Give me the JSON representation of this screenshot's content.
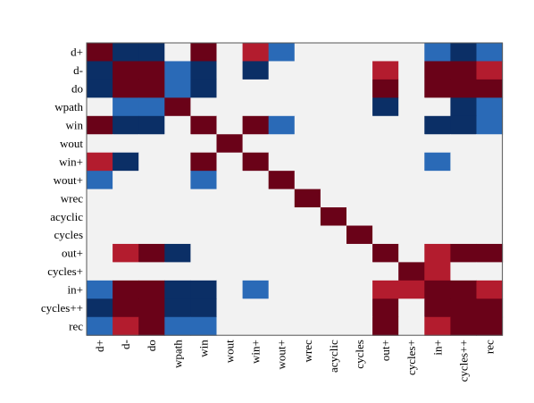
{
  "chart_data": {
    "type": "heatmap",
    "title": "",
    "xlabel": "",
    "ylabel": "",
    "row_labels": [
      "d+",
      "d-",
      "do",
      "wpath",
      "win",
      "wout",
      "win+",
      "wout+",
      "wrec",
      "acyclic",
      "cycles",
      "out+",
      "cycles+",
      "in+",
      "cycles++",
      "rec"
    ],
    "col_labels": [
      "d+",
      "d-",
      "do",
      "wpath",
      "win",
      "wout",
      "win+",
      "wout+",
      "wrec",
      "acyclic",
      "cycles",
      "out+",
      "cycles+",
      "in+",
      "cycles++",
      "rec"
    ],
    "value_range": [
      -1,
      1
    ],
    "color_scale": {
      "-1": "#0b2f66",
      "-0.6": "#2a6ab7",
      "0": "#f2f2f2",
      "0.6": "#b31c2e",
      "1": "#6a0218"
    },
    "matrix": [
      [
        1,
        -1,
        -1,
        0,
        1,
        0,
        0.6,
        -0.6,
        0,
        0,
        0,
        0,
        0,
        -0.6,
        -1,
        -0.6
      ],
      [
        -1,
        1,
        1,
        -0.6,
        -1,
        0,
        -1,
        0,
        0,
        0,
        0,
        0.6,
        0,
        1,
        1,
        0.6
      ],
      [
        -1,
        1,
        1,
        -0.6,
        -1,
        0,
        0,
        0,
        0,
        0,
        0,
        1,
        0,
        1,
        1,
        1
      ],
      [
        0,
        -0.6,
        -0.6,
        1,
        0,
        0,
        0,
        0,
        0,
        0,
        0,
        -1,
        0,
        0,
        -1,
        -0.6
      ],
      [
        1,
        -1,
        -1,
        0,
        1,
        0,
        1,
        -0.6,
        0,
        0,
        0,
        0,
        0,
        -1,
        -1,
        -0.6
      ],
      [
        0,
        0,
        0,
        0,
        0,
        1,
        0,
        0,
        0,
        0,
        0,
        0,
        0,
        0,
        0,
        0
      ],
      [
        0.6,
        -1,
        0,
        0,
        1,
        0,
        1,
        0,
        0,
        0,
        0,
        0,
        0,
        -0.6,
        0,
        0
      ],
      [
        -0.6,
        0,
        0,
        0,
        -0.6,
        0,
        0,
        1,
        0,
        0,
        0,
        0,
        0,
        0,
        0,
        0
      ],
      [
        0,
        0,
        0,
        0,
        0,
        0,
        0,
        0,
        1,
        0,
        0,
        0,
        0,
        0,
        0,
        0
      ],
      [
        0,
        0,
        0,
        0,
        0,
        0,
        0,
        0,
        0,
        1,
        0,
        0,
        0,
        0,
        0,
        0
      ],
      [
        0,
        0,
        0,
        0,
        0,
        0,
        0,
        0,
        0,
        0,
        1,
        0,
        0,
        0,
        0,
        0
      ],
      [
        0,
        0.6,
        1,
        -1,
        0,
        0,
        0,
        0,
        0,
        0,
        0,
        1,
        0,
        0.6,
        1,
        1
      ],
      [
        0,
        0,
        0,
        0,
        0,
        0,
        0,
        0,
        0,
        0,
        0,
        0,
        1,
        0.6,
        0,
        0
      ],
      [
        -0.6,
        1,
        1,
        -1,
        -1,
        0,
        -0.6,
        0,
        0,
        0,
        0,
        0.6,
        0.6,
        1,
        1,
        0.6
      ],
      [
        -1,
        1,
        1,
        -1,
        -1,
        0,
        0,
        0,
        0,
        0,
        0,
        1,
        0,
        1,
        1,
        1
      ],
      [
        -0.6,
        0.6,
        1,
        -0.6,
        -0.6,
        0,
        0,
        0,
        0,
        0,
        0,
        1,
        0,
        0.6,
        1,
        1
      ]
    ]
  }
}
